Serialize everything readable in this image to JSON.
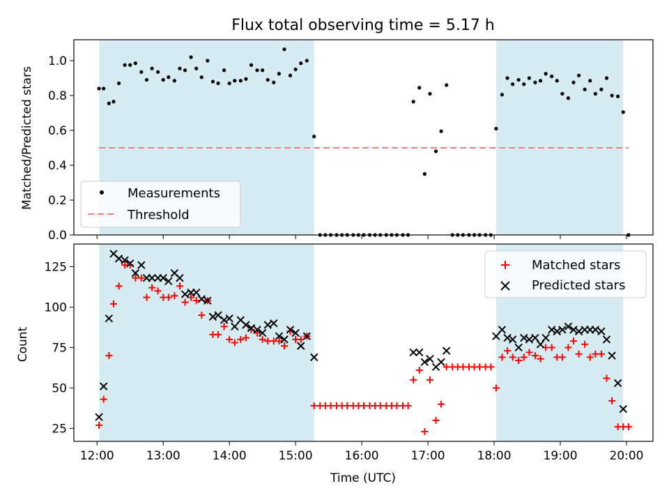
{
  "chart_data": [
    {
      "type": "scatter",
      "title": "Flux total observing time = 5.17 h",
      "ylabel": "Matched/Predicted stars",
      "xlabel": "",
      "ylim": [
        0,
        1.12
      ],
      "yticks": [
        0.0,
        0.2,
        0.4,
        0.6,
        0.8,
        1.0
      ],
      "ytick_labels": [
        "0.0",
        "0.2",
        "0.4",
        "0.6",
        "0.8",
        "1.0"
      ],
      "xlim": [
        11.65,
        20.4
      ],
      "xticks": [
        12,
        13,
        14,
        15,
        16,
        17,
        18,
        19,
        20
      ],
      "shaded_intervals_hours": [
        [
          12.03,
          15.28
        ],
        [
          18.03,
          19.95
        ]
      ],
      "shade_color": "#add8e6",
      "legend": {
        "placement": "lower-left",
        "entries": [
          {
            "label": "Measurements",
            "marker": "dot",
            "color": "#000000"
          },
          {
            "label": "Threshold",
            "marker": "dashed-line",
            "color": "#f08080"
          }
        ]
      },
      "threshold": 0.5,
      "series": [
        {
          "name": "Measurements",
          "color": "#000000",
          "x": [
            12.03,
            12.1,
            12.18,
            12.25,
            12.33,
            12.42,
            12.5,
            12.58,
            12.67,
            12.75,
            12.83,
            12.92,
            13.0,
            13.08,
            13.17,
            13.25,
            13.33,
            13.42,
            13.5,
            13.58,
            13.67,
            13.75,
            13.83,
            13.92,
            14.0,
            14.08,
            14.17,
            14.25,
            14.33,
            14.42,
            14.5,
            14.58,
            14.67,
            14.75,
            14.83,
            14.92,
            15.0,
            15.08,
            15.17,
            15.28,
            15.37,
            15.45,
            15.53,
            15.62,
            15.7,
            15.78,
            15.87,
            15.95,
            16.03,
            16.12,
            16.2,
            16.28,
            16.37,
            16.45,
            16.53,
            16.62,
            16.7,
            16.78,
            16.87,
            16.95,
            17.03,
            17.12,
            17.2,
            17.28,
            17.37,
            17.45,
            17.53,
            17.62,
            17.7,
            17.78,
            17.87,
            17.95,
            18.03,
            18.12,
            18.2,
            18.28,
            18.37,
            18.45,
            18.53,
            18.62,
            18.7,
            18.78,
            18.87,
            18.95,
            19.03,
            19.12,
            19.2,
            19.28,
            19.37,
            19.45,
            19.53,
            19.62,
            19.7,
            19.78,
            19.87,
            19.95,
            20.03
          ],
          "y": [
            0.84,
            0.84,
            0.755,
            0.765,
            0.87,
            0.975,
            0.975,
            0.985,
            0.935,
            0.89,
            0.955,
            0.935,
            0.89,
            0.905,
            0.885,
            0.955,
            0.945,
            1.02,
            0.955,
            0.905,
            1.0,
            0.88,
            0.87,
            0.945,
            0.87,
            0.885,
            0.885,
            0.895,
            0.975,
            0.945,
            0.945,
            0.89,
            0.875,
            0.925,
            1.065,
            0.915,
            0.95,
            0.985,
            1.0,
            0.565,
            0.0,
            0.0,
            0.0,
            0.0,
            0.0,
            0.0,
            0.0,
            0.0,
            0.0,
            0.0,
            0.0,
            0.0,
            0.0,
            0.0,
            0.0,
            0.0,
            0.0,
            0.765,
            0.845,
            0.35,
            0.81,
            0.48,
            0.595,
            0.86,
            0.0,
            0.0,
            0.0,
            0.0,
            0.0,
            0.0,
            0.0,
            0.0,
            0.61,
            0.805,
            0.9,
            0.865,
            0.89,
            0.865,
            0.9,
            0.875,
            0.885,
            0.925,
            0.91,
            0.885,
            0.81,
            0.785,
            0.875,
            0.915,
            0.835,
            0.885,
            0.81,
            0.835,
            0.9,
            0.8,
            0.795,
            0.705,
            0.0
          ]
        }
      ]
    },
    {
      "type": "scatter",
      "title": "",
      "xlabel": "Time (UTC)",
      "ylabel": "Count",
      "ylim": [
        17,
        139
      ],
      "yticks": [
        25,
        50,
        75,
        100,
        125
      ],
      "ytick_labels": [
        "25",
        "50",
        "75",
        "100",
        "125"
      ],
      "xlim": [
        11.65,
        20.4
      ],
      "xticks": [
        12,
        13,
        14,
        15,
        16,
        17,
        18,
        19,
        20
      ],
      "xtick_labels": [
        "12:00",
        "13:00",
        "14:00",
        "15:00",
        "16:00",
        "17:00",
        "18:00",
        "19:00",
        "20:00"
      ],
      "shaded_intervals_hours": [
        [
          12.03,
          15.28
        ],
        [
          18.03,
          19.95
        ]
      ],
      "shade_color": "#add8e6",
      "legend": {
        "placement": "upper-right",
        "entries": [
          {
            "label": "Matched stars",
            "marker": "plus",
            "color": "#ff0000"
          },
          {
            "label": "Predicted stars",
            "marker": "x",
            "color": "#000000"
          }
        ]
      },
      "series": [
        {
          "name": "Matched stars",
          "color": "#ff0000",
          "marker": "plus",
          "x": [
            12.03,
            12.1,
            12.18,
            12.25,
            12.33,
            12.42,
            12.5,
            12.58,
            12.67,
            12.75,
            12.83,
            12.92,
            13.0,
            13.08,
            13.17,
            13.25,
            13.33,
            13.42,
            13.5,
            13.58,
            13.67,
            13.75,
            13.83,
            13.92,
            14.0,
            14.08,
            14.17,
            14.25,
            14.33,
            14.42,
            14.5,
            14.58,
            14.67,
            14.75,
            14.83,
            14.92,
            15.0,
            15.08,
            15.17,
            15.28,
            15.37,
            15.45,
            15.53,
            15.62,
            15.7,
            15.78,
            15.87,
            15.95,
            16.03,
            16.12,
            16.2,
            16.28,
            16.37,
            16.45,
            16.53,
            16.62,
            16.7,
            16.78,
            16.87,
            16.95,
            17.03,
            17.12,
            17.2,
            17.28,
            17.37,
            17.45,
            17.53,
            17.62,
            17.7,
            17.78,
            17.87,
            17.95,
            18.03,
            18.12,
            18.2,
            18.28,
            18.37,
            18.45,
            18.53,
            18.62,
            18.7,
            18.78,
            18.87,
            18.95,
            19.03,
            19.12,
            19.2,
            19.28,
            19.37,
            19.45,
            19.53,
            19.62,
            19.7,
            19.78,
            19.87,
            19.95,
            20.03
          ],
          "y": [
            27,
            43,
            70,
            102,
            113,
            126,
            126,
            118,
            118,
            106,
            112,
            110,
            106,
            106,
            107,
            113,
            103,
            106,
            104,
            95,
            104,
            83,
            83,
            88,
            80,
            78,
            80,
            81,
            86,
            84,
            80,
            79,
            79,
            79,
            76,
            85,
            80,
            80,
            82,
            39,
            39,
            39,
            39,
            39,
            39,
            39,
            39,
            39,
            39,
            39,
            39,
            39,
            39,
            39,
            39,
            39,
            39,
            55,
            61,
            23,
            55,
            30,
            40,
            63,
            63,
            63,
            63,
            63,
            63,
            63,
            63,
            63,
            50,
            69,
            73,
            69,
            67,
            69,
            72,
            70,
            68,
            75,
            75,
            69,
            69,
            75,
            79,
            71,
            77,
            69,
            71,
            71,
            56,
            42,
            26,
            26,
            26
          ]
        },
        {
          "name": "Predicted stars",
          "color": "#000000",
          "marker": "x",
          "x": [
            12.03,
            12.1,
            12.18,
            12.25,
            12.33,
            12.42,
            12.5,
            12.58,
            12.67,
            12.75,
            12.83,
            12.92,
            13.0,
            13.08,
            13.17,
            13.25,
            13.33,
            13.42,
            13.5,
            13.58,
            13.67,
            13.75,
            13.83,
            13.92,
            14.0,
            14.08,
            14.17,
            14.25,
            14.33,
            14.42,
            14.5,
            14.58,
            14.67,
            14.75,
            14.83,
            14.92,
            15.0,
            15.08,
            15.17,
            15.28,
            16.78,
            16.87,
            16.95,
            17.03,
            17.12,
            17.2,
            17.28,
            18.03,
            18.12,
            18.2,
            18.28,
            18.37,
            18.45,
            18.53,
            18.62,
            18.7,
            18.78,
            18.87,
            18.95,
            19.03,
            19.12,
            19.2,
            19.28,
            19.37,
            19.45,
            19.53,
            19.62,
            19.7,
            19.78,
            19.87,
            19.95
          ],
          "y": [
            32,
            51,
            93,
            133,
            130,
            129,
            127,
            121,
            126,
            118,
            118,
            118,
            118,
            116,
            121,
            118,
            108,
            109,
            109,
            105,
            104,
            94,
            95,
            92,
            93,
            88,
            92,
            89,
            87,
            86,
            84,
            89,
            90,
            82,
            80,
            86,
            84,
            76,
            82,
            69,
            72,
            72,
            66,
            68,
            63,
            66,
            73,
            82,
            86,
            81,
            80,
            75,
            81,
            80,
            81,
            77,
            81,
            86,
            85,
            86,
            88,
            86,
            85,
            86,
            86,
            86,
            85,
            80,
            70,
            53,
            37
          ]
        }
      ]
    }
  ]
}
